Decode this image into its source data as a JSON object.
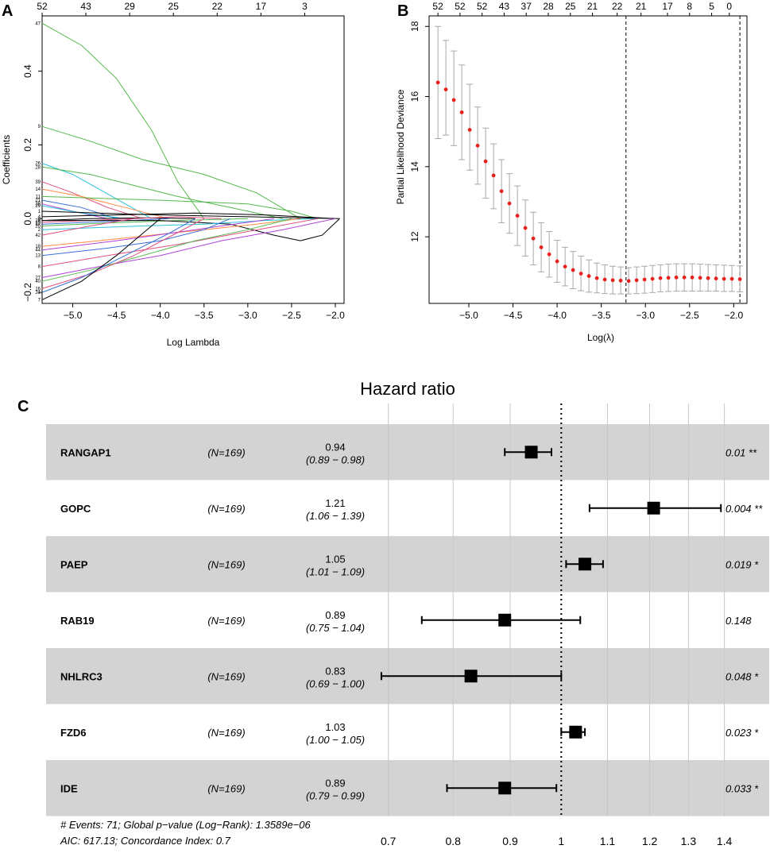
{
  "panel_a": {
    "label": "A",
    "chart_data": {
      "type": "line",
      "xlabel": "Log Lambda",
      "ylabel": "Coefficients",
      "xlim": [
        -5.35,
        -1.9
      ],
      "ylim": [
        -0.23,
        0.55
      ],
      "xticks": [
        -5.0,
        -4.5,
        -4.0,
        -3.5,
        -3.0,
        -2.5,
        -2.0
      ],
      "xtick_labels": [
        "−5.0",
        "−4.5",
        "−4.0",
        "−3.5",
        "−3.0",
        "−2.5",
        "−2.0"
      ],
      "yticks": [
        -0.2,
        0.0,
        0.2,
        0.4
      ],
      "ytick_labels": [
        "−0.2",
        "0.0",
        "0.2",
        "0.4"
      ],
      "top_ticks": [
        -5.35,
        -4.85,
        -4.35,
        -3.85,
        -3.35,
        -2.85,
        -2.35
      ],
      "top_labels": [
        "52",
        "43",
        "29",
        "25",
        "22",
        "17",
        "3"
      ],
      "series": [
        {
          "name": "47",
          "color": "#53b84b",
          "x": [
            -5.35,
            -4.9,
            -4.5,
            -4.1,
            -3.8,
            -3.5
          ],
          "y": [
            0.53,
            0.47,
            0.38,
            0.24,
            0.1,
            0.0
          ]
        },
        {
          "name": "9",
          "color": "#53b84b",
          "x": [
            -5.35,
            -4.8,
            -4.2,
            -3.5,
            -2.9,
            -2.4
          ],
          "y": [
            0.25,
            0.21,
            0.16,
            0.12,
            0.07,
            0.0
          ]
        },
        {
          "name": "26",
          "color": "#28c0d9",
          "x": [
            -5.35,
            -5.0,
            -4.7,
            -4.4,
            -4.1
          ],
          "y": [
            0.15,
            0.12,
            0.08,
            0.04,
            0.0
          ]
        },
        {
          "name": "28",
          "color": "#53b84b",
          "x": [
            -5.35,
            -4.8,
            -4.3,
            -3.8,
            -3.2,
            -2.6
          ],
          "y": [
            0.14,
            0.12,
            0.09,
            0.06,
            0.03,
            0.0
          ]
        },
        {
          "name": "39",
          "color": "#df4f80",
          "x": [
            -5.35,
            -5.0,
            -4.6,
            -4.2
          ],
          "y": [
            0.1,
            0.07,
            0.03,
            0.0
          ]
        },
        {
          "name": "14",
          "color": "#ff8c42",
          "x": [
            -5.35,
            -4.9,
            -4.4,
            -3.9
          ],
          "y": [
            0.08,
            0.06,
            0.03,
            0.0
          ]
        },
        {
          "name": "11",
          "color": "#53b84b",
          "x": [
            -5.35,
            -4.0,
            -3.0,
            -2.5,
            -2.2
          ],
          "y": [
            0.06,
            0.05,
            0.04,
            0.02,
            0.0
          ]
        },
        {
          "name": "21",
          "color": "#3a6fd8",
          "x": [
            -5.35,
            -4.9,
            -4.5
          ],
          "y": [
            0.05,
            0.03,
            0.0
          ]
        },
        {
          "name": "38",
          "color": "#b042d8",
          "x": [
            -5.35,
            -5.0,
            -4.6
          ],
          "y": [
            0.04,
            0.02,
            0.0
          ]
        },
        {
          "name": "29",
          "color": "#28c0d9",
          "x": [
            -5.35,
            -4.9,
            -4.4
          ],
          "y": [
            0.035,
            0.015,
            0.0
          ]
        },
        {
          "name": "1",
          "color": "#000000",
          "x": [
            -5.35,
            -4.7,
            -4.0,
            -3.0,
            -1.95
          ],
          "y": [
            0.02,
            0.015,
            0.01,
            0.005,
            0.0
          ]
        },
        {
          "name": "4",
          "color": "#000000",
          "x": [
            -5.35,
            -4.5,
            -3.6,
            -2.8,
            -2.0
          ],
          "y": [
            0.005,
            0.01,
            0.015,
            0.01,
            0.0
          ]
        },
        {
          "name": "23",
          "color": "#000000",
          "x": [
            -5.35,
            -4.8,
            -4.2,
            -3.6
          ],
          "y": [
            -0.005,
            0.0,
            0.002,
            0.0
          ]
        },
        {
          "name": "15",
          "color": "#df4f80",
          "x": [
            -5.35,
            -4.8,
            -4.3,
            -3.8,
            -3.3
          ],
          "y": [
            -0.01,
            -0.005,
            0.0,
            0.005,
            0.0
          ]
        },
        {
          "name": "17",
          "color": "#3a6fd8",
          "x": [
            -5.35,
            -4.6,
            -3.9
          ],
          "y": [
            -0.015,
            -0.008,
            0.0
          ]
        },
        {
          "name": "20",
          "color": "#53b84b",
          "x": [
            -5.35,
            -4.6,
            -3.8,
            -3.0
          ],
          "y": [
            -0.02,
            -0.012,
            -0.005,
            0.0
          ]
        },
        {
          "name": "5",
          "color": "#000000",
          "x": [
            -5.35,
            -4.0,
            -3.2,
            -2.7,
            -2.4,
            -2.15,
            -1.95
          ],
          "y": [
            -0.005,
            -0.005,
            -0.015,
            -0.045,
            -0.06,
            -0.045,
            0.0
          ]
        },
        {
          "name": "2",
          "color": "#28c0d9",
          "x": [
            -5.35,
            -4.8,
            -4.2,
            -3.5,
            -2.8,
            -2.2
          ],
          "y": [
            -0.03,
            -0.025,
            -0.02,
            -0.015,
            -0.005,
            0.0
          ]
        },
        {
          "name": "42",
          "color": "#df4f80",
          "x": [
            -5.35,
            -4.8,
            -4.3
          ],
          "y": [
            -0.045,
            -0.02,
            0.0
          ]
        },
        {
          "name": "18",
          "color": "#ff8c42",
          "x": [
            -5.35,
            -4.7,
            -4.1,
            -3.5,
            -2.9,
            -2.4
          ],
          "y": [
            -0.075,
            -0.06,
            -0.045,
            -0.03,
            -0.015,
            0.0
          ]
        },
        {
          "name": "44",
          "color": "#b042d8",
          "x": [
            -5.35,
            -4.5,
            -3.6,
            -2.7
          ],
          "y": [
            -0.085,
            -0.06,
            -0.03,
            0.0
          ]
        },
        {
          "name": "13",
          "color": "#3a6fd8",
          "x": [
            -5.35,
            -4.6,
            -4.0,
            -3.5,
            -3.2
          ],
          "y": [
            -0.1,
            -0.08,
            -0.06,
            -0.03,
            0.0
          ]
        },
        {
          "name": "8",
          "color": "#df4f80",
          "x": [
            -5.35,
            -4.6,
            -3.8,
            -3.0,
            -2.2
          ],
          "y": [
            -0.13,
            -0.1,
            -0.07,
            -0.035,
            0.0
          ]
        },
        {
          "name": "27",
          "color": "#b042d8",
          "x": [
            -5.35,
            -4.7,
            -4.0,
            -3.3,
            -2.6,
            -2.0
          ],
          "y": [
            -0.16,
            -0.13,
            -0.1,
            -0.06,
            -0.03,
            0.0
          ]
        },
        {
          "name": "40",
          "color": "#53b84b",
          "x": [
            -5.35,
            -4.8,
            -4.2,
            -3.6,
            -3.0,
            -2.5
          ],
          "y": [
            -0.17,
            -0.14,
            -0.1,
            -0.06,
            -0.03,
            0.0
          ]
        },
        {
          "name": "16",
          "color": "#df4f80",
          "x": [
            -5.35,
            -4.8,
            -4.3,
            -3.9,
            -3.5
          ],
          "y": [
            -0.19,
            -0.15,
            -0.1,
            -0.05,
            0.0
          ]
        },
        {
          "name": "31",
          "color": "#3a6fd8",
          "x": [
            -5.35,
            -4.9,
            -4.4,
            -3.9,
            -3.6
          ],
          "y": [
            -0.2,
            -0.16,
            -0.1,
            -0.04,
            0.0
          ]
        },
        {
          "name": "7",
          "color": "#000000",
          "x": [
            -5.35,
            -4.9,
            -4.5,
            -4.2,
            -4.0
          ],
          "y": [
            -0.22,
            -0.17,
            -0.1,
            -0.04,
            0.0
          ]
        }
      ]
    }
  },
  "panel_b": {
    "label": "B",
    "chart_data": {
      "type": "scatter",
      "xlabel": "Log(λ)",
      "ylabel": "Partial Likelihood Deviance",
      "xlim": [
        -5.45,
        -1.85
      ],
      "ylim": [
        10.1,
        18.3
      ],
      "xticks": [
        -5.0,
        -4.5,
        -4.0,
        -3.5,
        -3.0,
        -2.5,
        -2.0
      ],
      "xtick_labels": [
        "−5.0",
        "−4.5",
        "−4.0",
        "−3.5",
        "−3.0",
        "−2.5",
        "−2.0"
      ],
      "yticks": [
        12,
        14,
        16,
        18
      ],
      "ytick_labels": [
        "12",
        "14",
        "16",
        "18"
      ],
      "top_ticks": [
        -5.35,
        -5.1,
        -4.85,
        -4.6,
        -4.35,
        -4.1,
        -3.85,
        -3.6,
        -3.32,
        -3.05,
        -2.75,
        -2.5,
        -2.25,
        -2.05
      ],
      "top_labels": [
        "52",
        "52",
        "52",
        "43",
        "37",
        "28",
        "25",
        "21",
        "22",
        "21",
        "17",
        "8",
        "5",
        "0"
      ],
      "vlines": [
        -3.22,
        -1.93
      ],
      "x": [
        -5.35,
        -5.26,
        -5.17,
        -5.08,
        -4.99,
        -4.9,
        -4.81,
        -4.72,
        -4.63,
        -4.54,
        -4.45,
        -4.36,
        -4.27,
        -4.18,
        -4.09,
        -4.0,
        -3.91,
        -3.82,
        -3.73,
        -3.64,
        -3.55,
        -3.46,
        -3.37,
        -3.28,
        -3.19,
        -3.1,
        -3.01,
        -2.92,
        -2.83,
        -2.74,
        -2.65,
        -2.56,
        -2.47,
        -2.38,
        -2.29,
        -2.2,
        -2.11,
        -2.02,
        -1.93
      ],
      "mean": [
        16.4,
        16.2,
        15.9,
        15.55,
        15.05,
        14.6,
        14.15,
        13.75,
        13.3,
        12.95,
        12.6,
        12.25,
        11.95,
        11.7,
        11.5,
        11.3,
        11.15,
        11.05,
        10.95,
        10.88,
        10.82,
        10.78,
        10.76,
        10.75,
        10.74,
        10.76,
        10.78,
        10.8,
        10.82,
        10.83,
        10.84,
        10.84,
        10.84,
        10.83,
        10.82,
        10.81,
        10.8,
        10.8,
        10.79
      ],
      "lower": [
        14.8,
        14.9,
        14.6,
        14.2,
        13.9,
        13.5,
        13.1,
        12.8,
        12.4,
        12.1,
        11.75,
        11.45,
        11.2,
        11.0,
        10.85,
        10.7,
        10.6,
        10.52,
        10.46,
        10.42,
        10.4,
        10.38,
        10.37,
        10.37,
        10.37,
        10.38,
        10.39,
        10.41,
        10.43,
        10.44,
        10.45,
        10.45,
        10.45,
        10.45,
        10.45,
        10.45,
        10.44,
        10.44,
        10.43
      ],
      "upper": [
        18.0,
        17.6,
        17.3,
        16.9,
        16.35,
        15.7,
        15.1,
        14.65,
        14.2,
        13.8,
        13.45,
        13.05,
        12.7,
        12.4,
        12.15,
        11.9,
        11.7,
        11.58,
        11.45,
        11.34,
        11.25,
        11.2,
        11.16,
        11.14,
        11.12,
        11.14,
        11.16,
        11.18,
        11.2,
        11.22,
        11.23,
        11.23,
        11.23,
        11.22,
        11.21,
        11.2,
        11.19,
        11.18,
        11.17
      ]
    }
  },
  "panel_c": {
    "label": "C",
    "title": "Hazard ratio",
    "footer_1": "# Events: 71; Global p−value (Log−Rank): 1.3589e−06",
    "footer_2": "AIC: 617.13; Concordance Index: 0.7",
    "chart_data": {
      "type": "forest",
      "title": "Hazard ratio",
      "reference": 1,
      "xticks": [
        0.7,
        0.8,
        0.9,
        1.0,
        1.1,
        1.2,
        1.3,
        1.4
      ],
      "xtick_labels": [
        "0.7",
        "0.8",
        "0.9",
        "1",
        "1.1",
        "1.2",
        "1.3",
        "1.4"
      ],
      "rows": [
        {
          "name": "RANGAP1",
          "n": "(N=169)",
          "hr": 0.94,
          "lo": 0.89,
          "hi": 0.98,
          "hr_text": "0.94",
          "ci_text": "(0.89 − 0.98)",
          "p_text": "0.01 **"
        },
        {
          "name": "GOPC",
          "n": "(N=169)",
          "hr": 1.21,
          "lo": 1.06,
          "hi": 1.39,
          "hr_text": "1.21",
          "ci_text": "(1.06 − 1.39)",
          "p_text": "0.004 **"
        },
        {
          "name": "PAEP",
          "n": "(N=169)",
          "hr": 1.05,
          "lo": 1.01,
          "hi": 1.09,
          "hr_text": "1.05",
          "ci_text": "(1.01 − 1.09)",
          "p_text": "0.019 *"
        },
        {
          "name": "RAB19",
          "n": "(N=169)",
          "hr": 0.89,
          "lo": 0.75,
          "hi": 1.04,
          "hr_text": "0.89",
          "ci_text": "(0.75 − 1.04)",
          "p_text": "0.148"
        },
        {
          "name": "NHLRC3",
          "n": "(N=169)",
          "hr": 0.83,
          "lo": 0.69,
          "hi": 1.0,
          "hr_text": "0.83",
          "ci_text": "(0.69 − 1.00)",
          "p_text": "0.048 *"
        },
        {
          "name": "FZD6",
          "n": "(N=169)",
          "hr": 1.03,
          "lo": 1.0,
          "hi": 1.05,
          "hr_text": "1.03",
          "ci_text": "(1.00 − 1.05)",
          "p_text": "0.023 *"
        },
        {
          "name": "IDE",
          "n": "(N=169)",
          "hr": 0.89,
          "lo": 0.79,
          "hi": 0.99,
          "hr_text": "0.89",
          "ci_text": "(0.79 − 0.99)",
          "p_text": "0.033 *"
        }
      ]
    }
  }
}
